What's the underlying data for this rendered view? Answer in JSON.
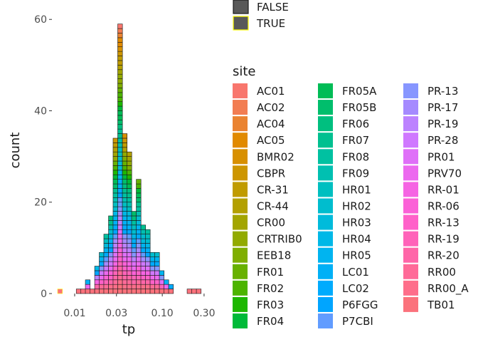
{
  "chart_data": {
    "type": "bar",
    "subtype": "stacked-histogram",
    "xlabel": "tp",
    "ylabel": "count",
    "x_scale": "log10",
    "x_ticks": [
      "0.01",
      "0.03",
      "0.10",
      "0.30"
    ],
    "x_tick_values": [
      0.01,
      0.03,
      0.1,
      0.3
    ],
    "xlim": [
      0.0055,
      0.33
    ],
    "y_ticks": [
      "0",
      "20",
      "40",
      "60"
    ],
    "y_tick_values": [
      0,
      20,
      40,
      60
    ],
    "ylim": [
      0,
      63
    ],
    "grid": false,
    "bin_centers": [
      0.0068,
      0.0077,
      0.0087,
      0.0098,
      0.0111,
      0.0125,
      0.0141,
      0.0159,
      0.018,
      0.0203,
      0.0229,
      0.0259,
      0.0292,
      0.033,
      0.0373,
      0.0421,
      0.0475,
      0.0537,
      0.0606,
      0.0684,
      0.0773,
      0.0873,
      0.0986,
      0.1113,
      0.1257,
      0.142,
      0.1603,
      0.181,
      0.2044,
      0.2309,
      0.2608
    ],
    "bin_counts": [
      1,
      0,
      0,
      0,
      1,
      1,
      3,
      1,
      6,
      9,
      13,
      17,
      34,
      59,
      35,
      31,
      18,
      25,
      15,
      14,
      9,
      9,
      5,
      3,
      2,
      0,
      0,
      0,
      1,
      1,
      1
    ],
    "outline_legend": {
      "title": "",
      "entries": [
        "FALSE",
        "TRUE"
      ],
      "fill": "#595959",
      "outline_colors": [
        "#1a1a1a",
        "#ffff00"
      ]
    },
    "legend": {
      "title": "site",
      "placement": "right",
      "entries": [
        {
          "label": "AC01",
          "color": "#F8766D"
        },
        {
          "label": "AC02",
          "color": "#F27D52"
        },
        {
          "label": "AC04",
          "color": "#EA8331"
        },
        {
          "label": "AC05",
          "color": "#E18A00"
        },
        {
          "label": "BMR02",
          "color": "#D89000"
        },
        {
          "label": "CBPR",
          "color": "#CD9600"
        },
        {
          "label": "CR-31",
          "color": "#C09B00"
        },
        {
          "label": "CR-44",
          "color": "#B3A000"
        },
        {
          "label": "CR00",
          "color": "#A3A500"
        },
        {
          "label": "CRTRIB0",
          "color": "#92AA00"
        },
        {
          "label": "EEB18",
          "color": "#7FAE00"
        },
        {
          "label": "FR01",
          "color": "#68B100"
        },
        {
          "label": "FR02",
          "color": "#4CB400"
        },
        {
          "label": "FR03",
          "color": "#1DB700"
        },
        {
          "label": "FR04",
          "color": "#00BA38"
        },
        {
          "label": "FR05A",
          "color": "#00BC56"
        },
        {
          "label": "FR05B",
          "color": "#00BE6C"
        },
        {
          "label": "FR06",
          "color": "#00BF7F"
        },
        {
          "label": "FR07",
          "color": "#00C090"
        },
        {
          "label": "FR08",
          "color": "#00C1A1"
        },
        {
          "label": "FR09",
          "color": "#00C0B1"
        },
        {
          "label": "HR01",
          "color": "#00BFC0"
        },
        {
          "label": "HR02",
          "color": "#00BDCE"
        },
        {
          "label": "HR03",
          "color": "#00BBDB"
        },
        {
          "label": "HR04",
          "color": "#00B8E7"
        },
        {
          "label": "HR05",
          "color": "#00B4F0"
        },
        {
          "label": "LC01",
          "color": "#00B0F6"
        },
        {
          "label": "LC02",
          "color": "#00ABFD"
        },
        {
          "label": "P6FGG",
          "color": "#00A5FF"
        },
        {
          "label": "P7CBI",
          "color": "#619CFF"
        },
        {
          "label": "PR-13",
          "color": "#8796FF"
        },
        {
          "label": "PR-17",
          "color": "#A58AFF"
        },
        {
          "label": "PR-19",
          "color": "#BC82FF"
        },
        {
          "label": "PR-28",
          "color": "#CF78FF"
        },
        {
          "label": "PR01",
          "color": "#DF70F8"
        },
        {
          "label": "PRV70",
          "color": "#EC69EF"
        },
        {
          "label": "RR-01",
          "color": "#F564E3"
        },
        {
          "label": "RR-06",
          "color": "#FB61D7"
        },
        {
          "label": "RR-13",
          "color": "#FF61C9"
        },
        {
          "label": "RR-19",
          "color": "#FF63B9"
        },
        {
          "label": "RR-20",
          "color": "#FF66A8"
        },
        {
          "label": "RR00",
          "color": "#FF6A98"
        },
        {
          "label": "RR00_A",
          "color": "#FE6E8A"
        },
        {
          "label": "TB01",
          "color": "#FB727C"
        }
      ]
    }
  }
}
